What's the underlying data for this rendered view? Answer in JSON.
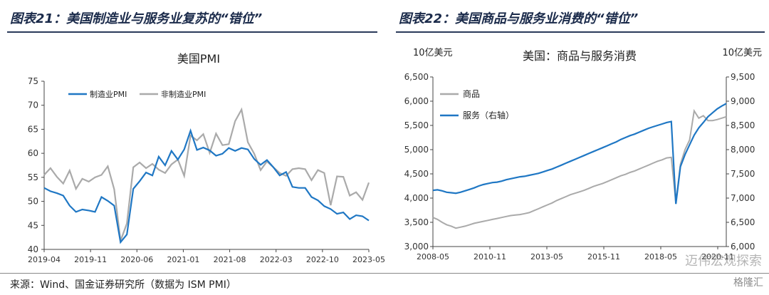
{
  "panels": {
    "left_title": "图表21：美国制造业与服务业复苏的“错位”",
    "right_title": "图表22：美国商品与服务业消费的“错位”"
  },
  "source": "来源：Wind、国金证券研究所（数据为 ISM PMI）",
  "watermark": "迈伟宏观探索",
  "logo_text": "格隆汇",
  "colors": {
    "blue": "#1f77c4",
    "gray": "#aaaaaa",
    "title": "#1a2a4a"
  },
  "chart_data": [
    {
      "type": "line",
      "title": "美国PMI",
      "xlabel": "",
      "ylabel": "",
      "ylim": [
        40,
        75
      ],
      "yticks": [
        40,
        45,
        50,
        55,
        60,
        65,
        70,
        75
      ],
      "x_tick_labels": [
        "2019-04",
        "2019-11",
        "2020-06",
        "2021-01",
        "2021-08",
        "2022-03",
        "2022-10",
        "2023-05"
      ],
      "x_start": "2019-04",
      "x_end": "2023-05",
      "legend": "top-left",
      "grid": false,
      "series": [
        {
          "name": "制造业PMI",
          "color": "#1f77c4",
          "values": [
            52.8,
            52.1,
            51.7,
            51.2,
            49.1,
            47.8,
            48.3,
            48.1,
            47.8,
            50.9,
            50.1,
            49.1,
            41.5,
            43.1,
            52.6,
            54.2,
            56.0,
            55.4,
            59.3,
            57.5,
            60.5,
            58.7,
            60.8,
            64.7,
            60.7,
            61.2,
            60.6,
            59.5,
            59.9,
            61.1,
            60.5,
            61.1,
            60.8,
            58.8,
            57.6,
            58.6,
            57.1,
            55.4,
            56.1,
            53.0,
            52.8,
            52.8,
            50.9,
            50.2,
            49.0,
            48.4,
            47.4,
            47.7,
            46.3,
            47.1,
            46.9,
            46.0
          ]
        },
        {
          "name": "非制造业PMI",
          "color": "#aaaaaa",
          "values": [
            55.5,
            56.9,
            55.1,
            53.7,
            56.4,
            52.6,
            54.7,
            54.1,
            55.0,
            55.5,
            57.3,
            52.5,
            41.8,
            45.4,
            57.1,
            58.1,
            56.9,
            57.8,
            56.6,
            55.9,
            57.7,
            58.7,
            55.3,
            63.7,
            62.7,
            64.0,
            60.1,
            64.1,
            61.7,
            61.9,
            66.7,
            69.1,
            62.3,
            59.9,
            56.5,
            58.3,
            57.1,
            55.9,
            55.3,
            56.7,
            56.9,
            56.7,
            54.4,
            56.5,
            55.9,
            49.2,
            55.2,
            55.1,
            51.2,
            51.9,
            50.3,
            53.9
          ]
        }
      ]
    },
    {
      "type": "line",
      "title": "美国：商品与服务消费",
      "ylabel_left": "10亿美元",
      "ylabel_right": "10亿美元",
      "ylim_left": [
        3000,
        6500
      ],
      "ylim_right": [
        6000,
        9500
      ],
      "yticks_left": [
        "3,000",
        "3,500",
        "4,000",
        "4,500",
        "5,000",
        "5,500",
        "6,000",
        "6,500"
      ],
      "yticks_right": [
        "6,000",
        "6,500",
        "7,000",
        "7,500",
        "8,000",
        "8,500",
        "9,000",
        "9,500"
      ],
      "x_tick_labels": [
        "2008-05",
        "2010-11",
        "2013-05",
        "2015-11",
        "2018-05",
        "2020-11"
      ],
      "legend": "top-left",
      "grid": false,
      "series": [
        {
          "name": "商品",
          "axis": "left",
          "color": "#aaaaaa",
          "values": [
            3600,
            3560,
            3500,
            3450,
            3420,
            3380,
            3400,
            3420,
            3450,
            3480,
            3500,
            3520,
            3540,
            3560,
            3580,
            3600,
            3620,
            3640,
            3650,
            3660,
            3680,
            3700,
            3740,
            3780,
            3820,
            3860,
            3900,
            3950,
            3990,
            4030,
            4070,
            4100,
            4130,
            4160,
            4200,
            4240,
            4270,
            4300,
            4340,
            4380,
            4420,
            4460,
            4490,
            4530,
            4560,
            4600,
            4640,
            4680,
            4720,
            4760,
            4790,
            4830,
            4840,
            3900,
            4700,
            5000,
            5200,
            5800,
            5650,
            5700,
            5600,
            5600,
            5620,
            5650,
            5680
          ]
        },
        {
          "name": "服务（右轴）",
          "axis": "right",
          "color": "#1f77c4",
          "values": [
            7160,
            7170,
            7150,
            7120,
            7110,
            7100,
            7120,
            7150,
            7180,
            7210,
            7250,
            7280,
            7300,
            7320,
            7330,
            7350,
            7380,
            7400,
            7420,
            7440,
            7450,
            7470,
            7490,
            7510,
            7540,
            7570,
            7600,
            7640,
            7680,
            7720,
            7760,
            7800,
            7840,
            7880,
            7920,
            7960,
            8000,
            8040,
            8080,
            8120,
            8160,
            8210,
            8250,
            8290,
            8320,
            8360,
            8400,
            8440,
            8470,
            8500,
            8530,
            8560,
            8580,
            6880,
            7650,
            7900,
            8100,
            8300,
            8450,
            8560,
            8680,
            8760,
            8840,
            8900,
            8950
          ]
        }
      ]
    }
  ]
}
